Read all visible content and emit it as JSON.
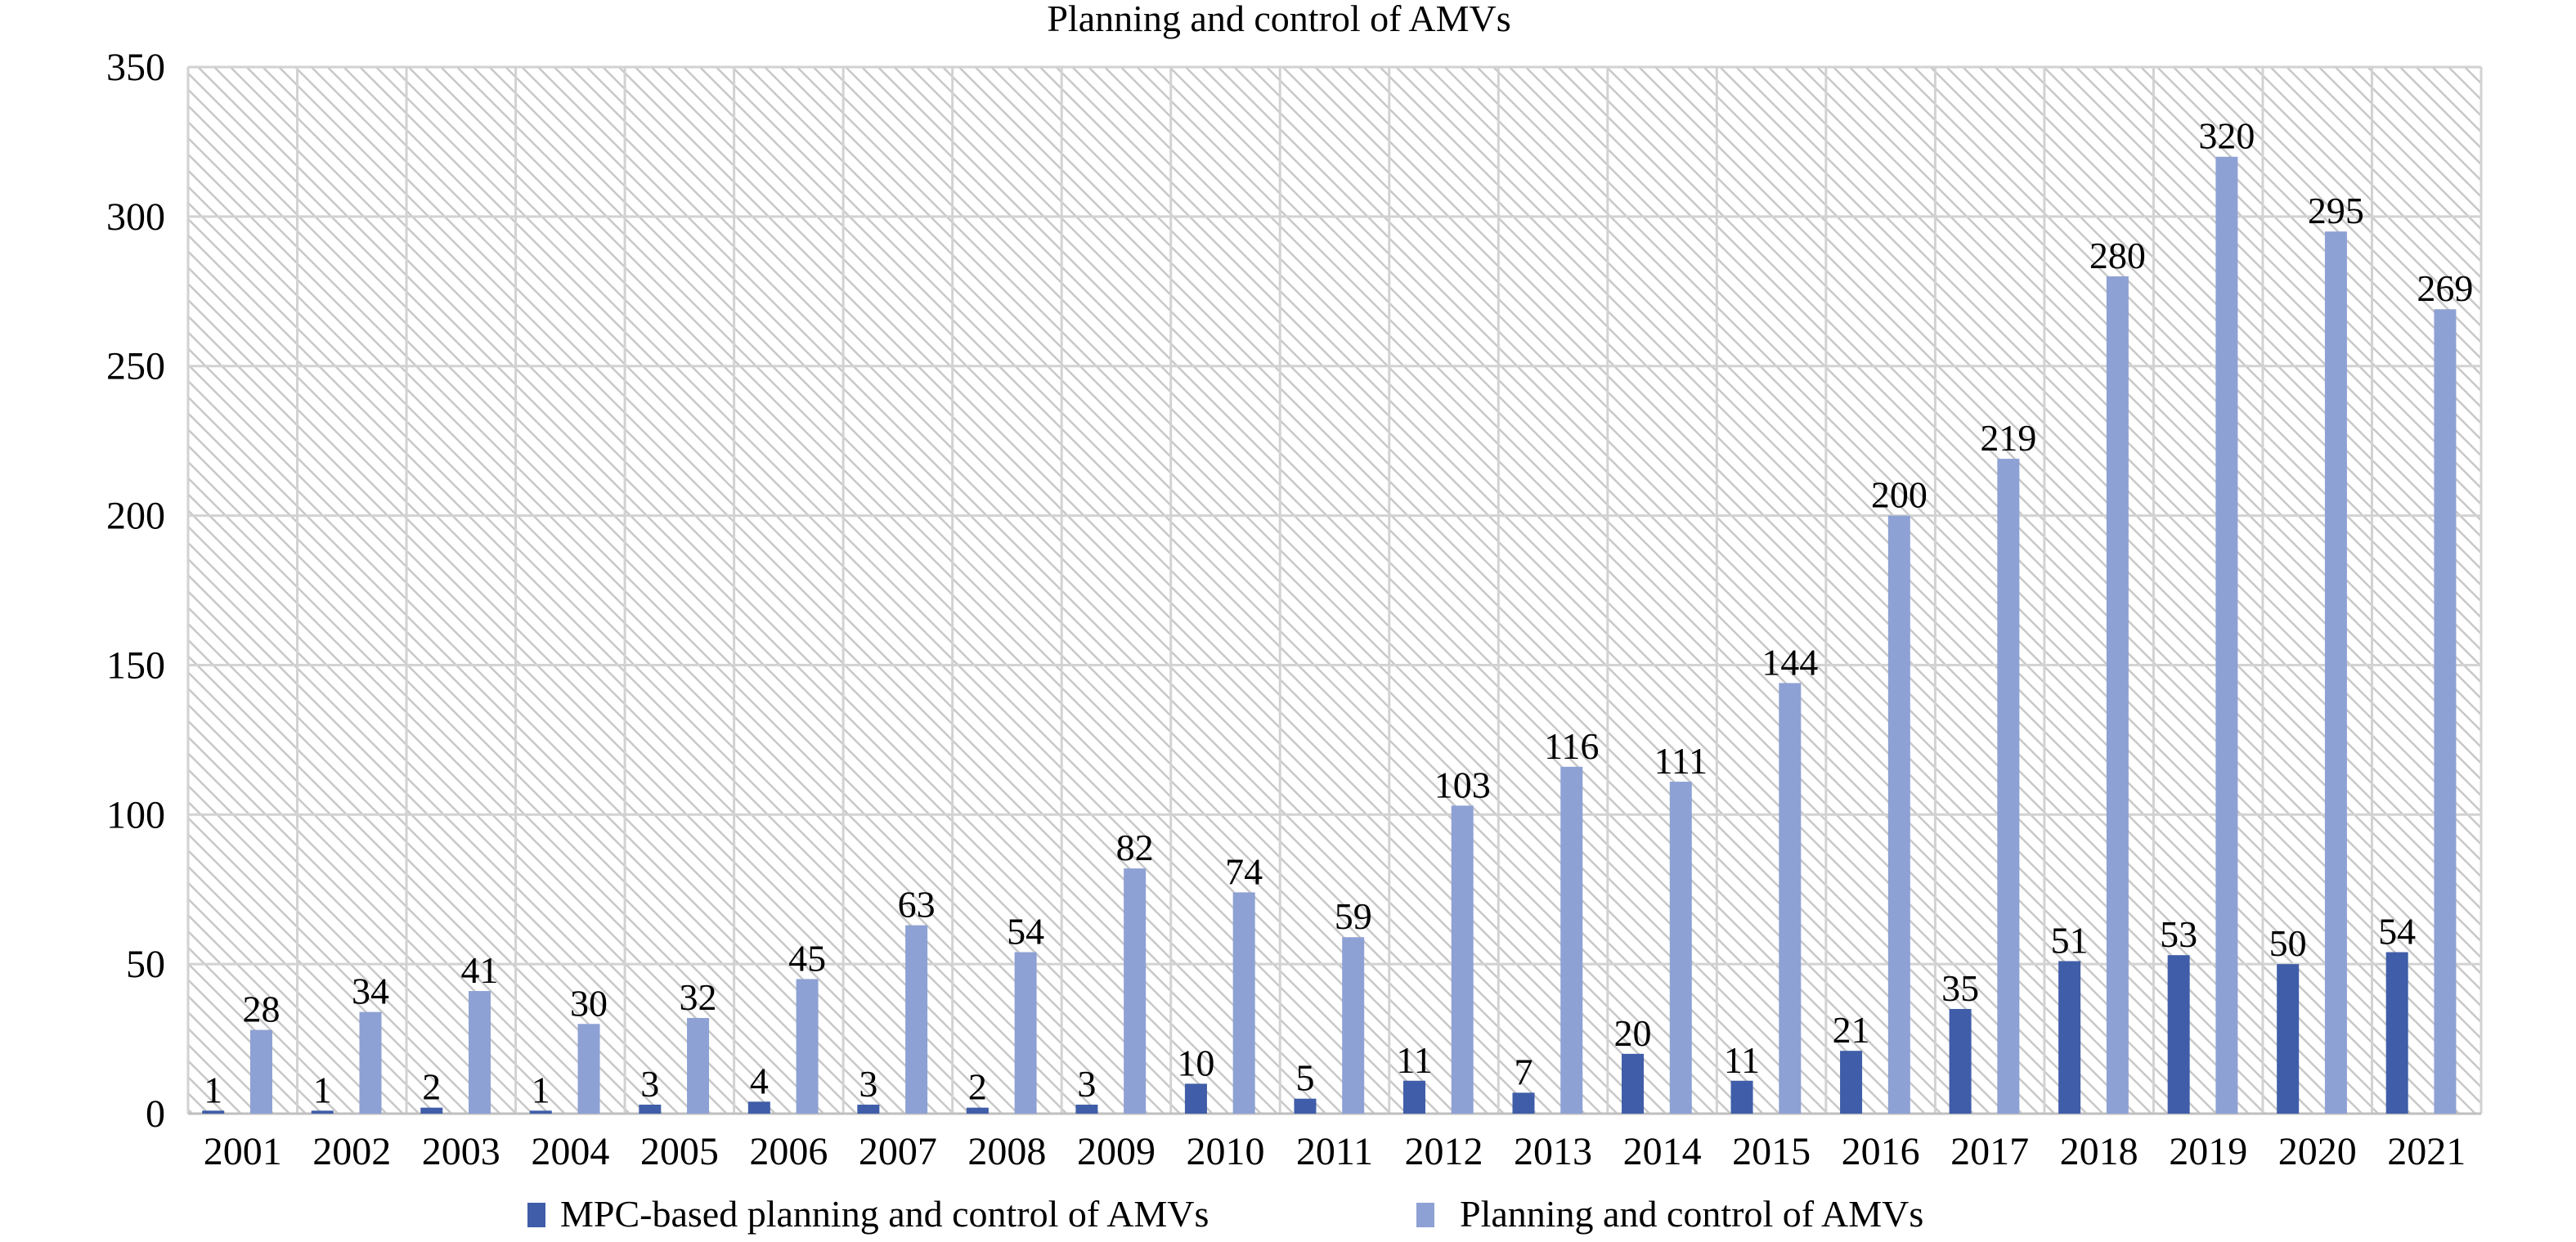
{
  "chart_data": {
    "type": "bar",
    "title": "Planning and control of AMVs",
    "categories": [
      "2001",
      "2002",
      "2003",
      "2004",
      "2005",
      "2006",
      "2007",
      "2008",
      "2009",
      "2010",
      "2011",
      "2012",
      "2013",
      "2014",
      "2015",
      "2016",
      "2017",
      "2018",
      "2019",
      "2020",
      "2021"
    ],
    "series": [
      {
        "name": "MPC-based planning and control of AMVs",
        "color": "#3f5da8",
        "values": [
          1,
          1,
          2,
          1,
          3,
          4,
          3,
          2,
          3,
          10,
          5,
          11,
          7,
          20,
          11,
          21,
          35,
          51,
          53,
          50,
          54
        ]
      },
      {
        "name": "Planning and control of AMVs",
        "color": "#8ea1d4",
        "values": [
          28,
          34,
          41,
          30,
          32,
          45,
          63,
          54,
          82,
          74,
          59,
          103,
          116,
          111,
          144,
          200,
          219,
          280,
          320,
          295,
          269
        ]
      }
    ],
    "xlabel": "",
    "ylabel": "",
    "ylim": [
      0,
      350
    ],
    "yticks": [
      "0",
      "50",
      "100",
      "150",
      "200",
      "250",
      "300",
      "350"
    ],
    "grid": true,
    "background": "diagonal hatch",
    "legend": "bottom-center"
  }
}
